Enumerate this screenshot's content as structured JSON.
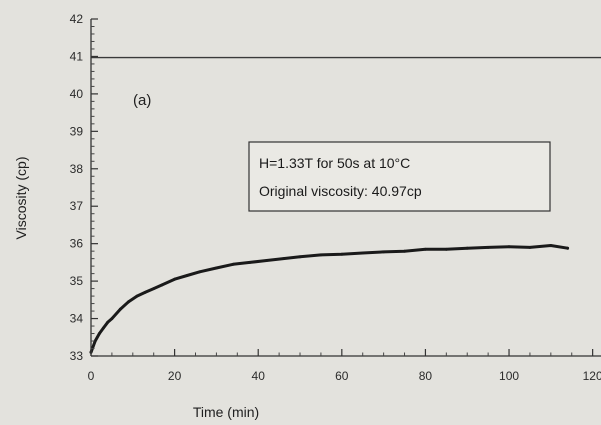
{
  "chart_data": {
    "type": "line",
    "title": "",
    "panel_label": "(a)",
    "xlabel": "Time (min)",
    "ylabel": "Viscosity (cp)",
    "xlim": [
      0,
      120
    ],
    "ylim": [
      33,
      42
    ],
    "x_ticks": [
      0,
      20,
      40,
      60,
      80,
      100,
      120
    ],
    "x_tick_labels": [
      "0",
      "20",
      "40",
      "60",
      "80",
      "100",
      "120"
    ],
    "y_ticks": [
      33,
      34,
      35,
      36,
      37,
      38,
      39,
      40,
      41,
      42
    ],
    "y_tick_labels": [
      "33",
      "34",
      "35",
      "36",
      "37",
      "38",
      "39",
      "40",
      "41",
      "42"
    ],
    "grid": false,
    "series": [
      {
        "x": [
          0,
          1,
          2,
          3,
          4,
          5,
          7,
          9,
          11,
          13,
          15,
          17,
          20,
          23,
          26,
          30,
          34,
          38,
          42,
          46,
          50,
          55,
          60,
          65,
          70,
          75,
          80,
          85,
          90,
          95,
          100,
          105,
          110,
          114
        ],
        "y": [
          33.1,
          33.4,
          33.6,
          33.75,
          33.9,
          34.0,
          34.25,
          34.45,
          34.6,
          34.7,
          34.8,
          34.9,
          35.05,
          35.15,
          35.25,
          35.35,
          35.45,
          35.5,
          35.55,
          35.6,
          35.65,
          35.7,
          35.72,
          35.75,
          35.78,
          35.8,
          35.85,
          35.85,
          35.88,
          35.9,
          35.92,
          35.9,
          35.95,
          35.88
        ],
        "color": "#1a1a1a"
      }
    ],
    "reference_line": {
      "y": 40.97,
      "color": "#3a3a3a"
    },
    "annotation": {
      "lines": [
        "H=1.33T for 50s at 10°C",
        "Original viscosity: 40.97cp"
      ]
    }
  }
}
